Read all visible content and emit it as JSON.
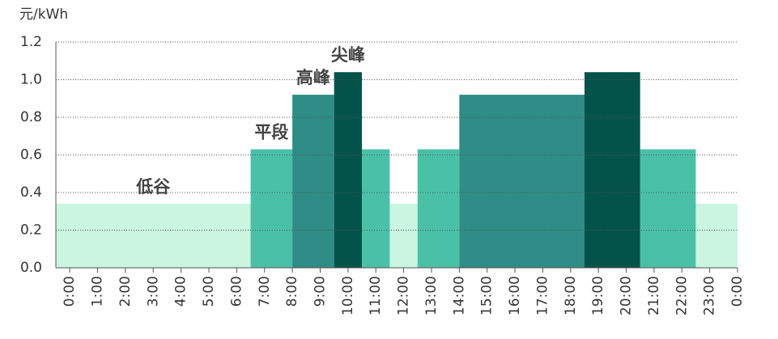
{
  "chart_data": {
    "type": "step-bar",
    "y_label": "元/kWh",
    "ylim": [
      0,
      1.2
    ],
    "yticks": [
      {
        "value": 0,
        "label": "0.0"
      },
      0.2,
      0.4,
      0.6,
      0.8,
      {
        "value": 1,
        "label": "1.0"
      },
      1.2
    ],
    "xlim": [
      -0.5,
      24
    ],
    "xticks": [
      {
        "value": 0,
        "label": "0:00"
      },
      {
        "value": 1,
        "label": "1:00"
      },
      {
        "value": 2,
        "label": "2:00"
      },
      {
        "value": 3,
        "label": "3:00"
      },
      {
        "value": 4,
        "label": "4:00"
      },
      {
        "value": 5,
        "label": "5:00"
      },
      {
        "value": 6,
        "label": "6:00"
      },
      {
        "value": 7,
        "label": "7:00"
      },
      {
        "value": 8,
        "label": "8:00"
      },
      {
        "value": 9,
        "label": "9:00"
      },
      {
        "value": 10,
        "label": "10:00"
      },
      {
        "value": 11,
        "label": "11:00"
      },
      {
        "value": 12,
        "label": "12:00"
      },
      {
        "value": 13,
        "label": "13:00"
      },
      {
        "value": 14,
        "label": "14:00"
      },
      {
        "value": 15,
        "label": "15:00"
      },
      {
        "value": 16,
        "label": "16:00"
      },
      {
        "value": 17,
        "label": "17:00"
      },
      {
        "value": 18,
        "label": "18:00"
      },
      {
        "value": 19,
        "label": "19:00"
      },
      {
        "value": 20,
        "label": "20:00"
      },
      {
        "value": 21,
        "label": "21:00"
      },
      {
        "value": 22,
        "label": "22:00"
      },
      {
        "value": 23,
        "label": "23:00"
      },
      {
        "value": 24,
        "label": "0:00"
      }
    ],
    "grid": true,
    "series": [
      {
        "name": "低谷",
        "color": "#c9f5e1",
        "value": 0.34,
        "segments": [
          [
            -0.5,
            6.5
          ],
          [
            11.5,
            12.5
          ],
          [
            22.5,
            24
          ]
        ]
      },
      {
        "name": "平段",
        "color": "#4ac1a7",
        "value": 0.63,
        "segments": [
          [
            6.5,
            8
          ],
          [
            10.5,
            11.5
          ],
          [
            12.5,
            14
          ],
          [
            20.5,
            22.5
          ]
        ]
      },
      {
        "name": "高峰",
        "color": "#2f8c86",
        "value": 0.92,
        "segments": [
          [
            8,
            9.5
          ],
          [
            14,
            18.5
          ]
        ]
      },
      {
        "name": "尖峰",
        "color": "#03534b",
        "value": 1.04,
        "segments": [
          [
            9.5,
            10.5
          ],
          [
            18.5,
            20.5
          ]
        ]
      }
    ]
  }
}
